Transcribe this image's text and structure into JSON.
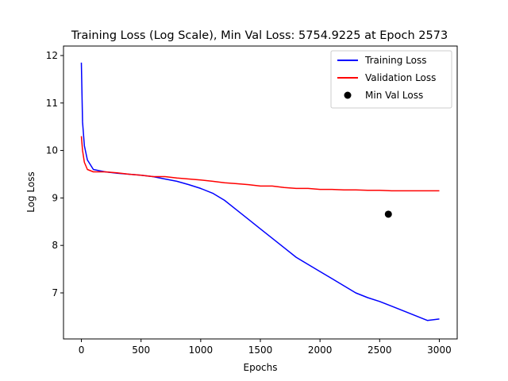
{
  "chart_data": {
    "type": "line",
    "title": "Training Loss (Log Scale), Min Val Loss: 5754.9225 at Epoch 2573",
    "xlabel": "Epochs",
    "ylabel": "Log Loss",
    "xlim": [
      -150,
      3150
    ],
    "ylim": [
      6.03,
      12.2
    ],
    "xticks": [
      0,
      500,
      1000,
      1500,
      2000,
      2500,
      3000
    ],
    "xtick_labels": [
      "0",
      "500",
      "1000",
      "1500",
      "2000",
      "2500",
      "3000"
    ],
    "yticks": [
      7,
      8,
      9,
      10,
      11,
      12
    ],
    "ytick_labels": [
      "7",
      "8",
      "9",
      "10",
      "11",
      "12"
    ],
    "legend_position": "top-right",
    "grid": false,
    "series": [
      {
        "name": "Training Loss",
        "color": "#0000ff",
        "style": "line",
        "x": [
          0,
          10,
          25,
          50,
          100,
          200,
          300,
          400,
          500,
          600,
          700,
          800,
          900,
          1000,
          1100,
          1200,
          1300,
          1400,
          1500,
          1600,
          1700,
          1800,
          1900,
          2000,
          2100,
          2200,
          2300,
          2400,
          2500,
          2600,
          2700,
          2800,
          2900,
          3000
        ],
        "values": [
          11.85,
          10.6,
          10.1,
          9.8,
          9.6,
          9.55,
          9.52,
          9.5,
          9.48,
          9.45,
          9.4,
          9.35,
          9.28,
          9.2,
          9.1,
          8.95,
          8.75,
          8.55,
          8.35,
          8.15,
          7.95,
          7.75,
          7.6,
          7.45,
          7.3,
          7.15,
          7.0,
          6.9,
          6.82,
          6.72,
          6.62,
          6.52,
          6.42,
          6.45
        ]
      },
      {
        "name": "Validation Loss",
        "color": "#ff0000",
        "style": "line",
        "x": [
          0,
          10,
          25,
          50,
          100,
          200,
          300,
          400,
          500,
          600,
          700,
          800,
          900,
          1000,
          1100,
          1200,
          1300,
          1400,
          1500,
          1600,
          1700,
          1800,
          1900,
          2000,
          2100,
          2200,
          2300,
          2400,
          2500,
          2600,
          2700,
          2800,
          2900,
          3000
        ],
        "values": [
          10.3,
          10.0,
          9.75,
          9.6,
          9.55,
          9.55,
          9.53,
          9.5,
          9.48,
          9.45,
          9.45,
          9.42,
          9.4,
          9.38,
          9.35,
          9.32,
          9.3,
          9.28,
          9.25,
          9.25,
          9.22,
          9.2,
          9.2,
          9.18,
          9.18,
          9.17,
          9.17,
          9.16,
          9.16,
          9.15,
          9.15,
          9.15,
          9.15,
          9.15
        ]
      },
      {
        "name": "Min Val Loss",
        "color": "#000000",
        "style": "scatter",
        "x": [
          2573
        ],
        "values": [
          8.6578
        ]
      }
    ]
  }
}
